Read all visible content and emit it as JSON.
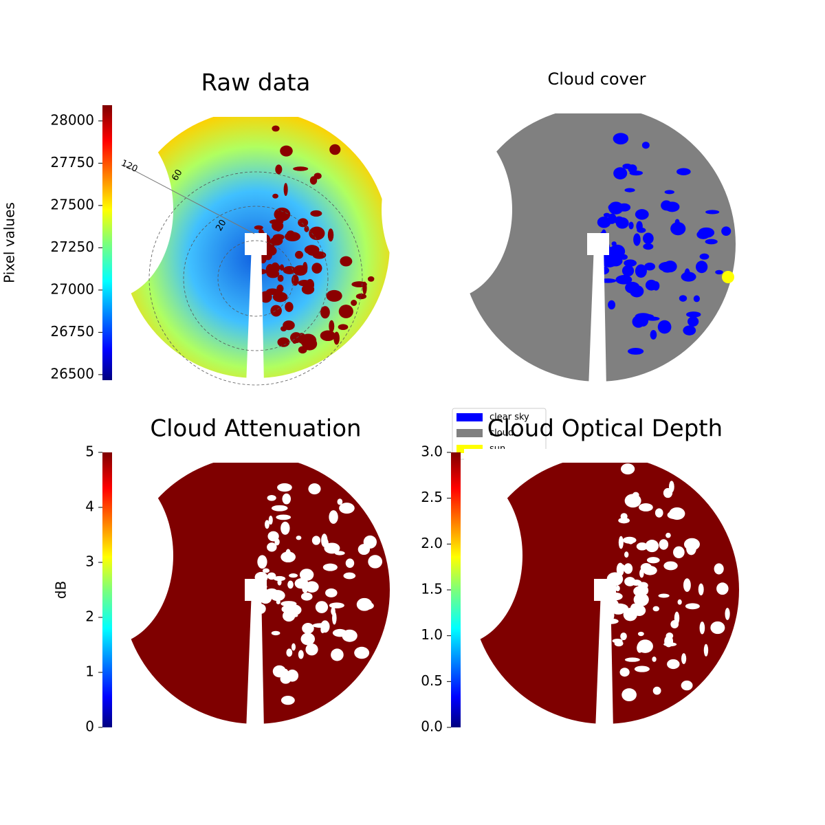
{
  "chart_data": [
    {
      "type": "image",
      "title": "Raw data",
      "ylabel": "Pixel values",
      "colormap": "jet",
      "ylim": [
        26467,
        28093
      ],
      "yticks": [
        26500,
        26750,
        27000,
        27250,
        27500,
        27750,
        28000
      ],
      "annotations": [
        "120",
        "60",
        "20"
      ]
    },
    {
      "type": "image",
      "title": "Cloud cover",
      "legend": [
        {
          "name": "clear sky",
          "color": "#0000ff"
        },
        {
          "name": "cloud",
          "color": "#808080"
        },
        {
          "name": "sun",
          "color": "#ffff00"
        }
      ]
    },
    {
      "type": "image",
      "title": "Cloud Attenuation",
      "ylabel": "dB",
      "colormap": "jet",
      "ylim": [
        0,
        5
      ],
      "yticks": [
        0,
        1,
        2,
        3,
        4,
        5
      ]
    },
    {
      "type": "image",
      "title": "Cloud Optical Depth",
      "colormap": "jet",
      "ylim": [
        0,
        3
      ],
      "yticks": [
        {
          "value": 0,
          "label": "0.0"
        },
        0.5,
        {
          "value": 1,
          "label": "1.0"
        },
        1.5,
        {
          "value": 2,
          "label": "2.0"
        },
        2.5,
        {
          "value": 3,
          "label": "3.0"
        }
      ]
    }
  ]
}
